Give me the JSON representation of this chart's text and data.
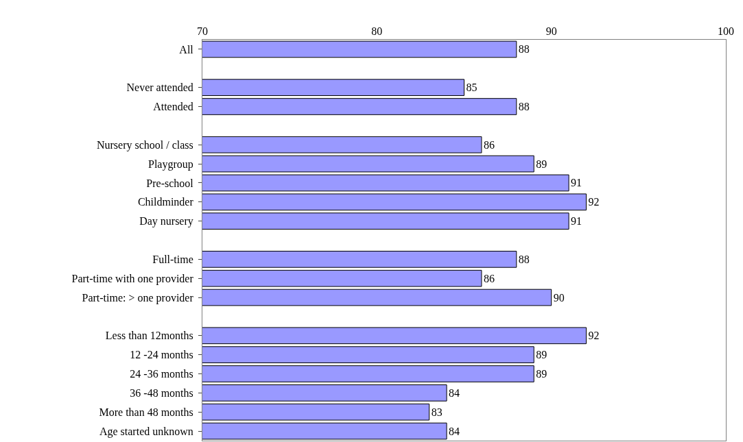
{
  "chart_data": {
    "type": "bar",
    "orientation": "horizontal",
    "categories": [
      "All",
      null,
      "Never attended",
      "Attended",
      null,
      "Nursery school / class",
      "Playgroup",
      "Pre-school",
      "Childminder",
      "Day nursery",
      null,
      "Full-time",
      "Part-time with one provider",
      "Part-time: > one provider",
      null,
      "Less than 12months",
      "12 -24 months",
      "24 -36 months",
      "36 -48 months",
      "More than 48 months",
      "Age started unknown"
    ],
    "values": [
      88,
      null,
      85,
      88,
      null,
      86,
      89,
      91,
      92,
      91,
      null,
      88,
      86,
      90,
      null,
      92,
      89,
      89,
      84,
      83,
      84
    ],
    "color": "#9999ff",
    "xlim": [
      70,
      100
    ],
    "xticks": [
      70,
      80,
      90,
      100
    ],
    "data_labels": true
  }
}
